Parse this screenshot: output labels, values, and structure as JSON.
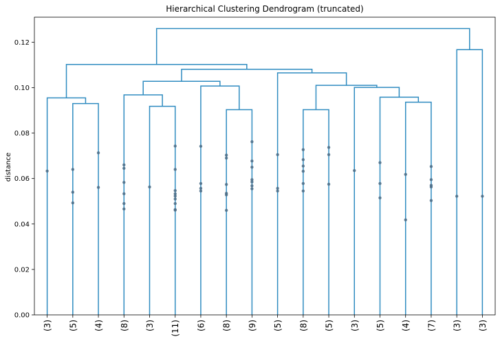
{
  "chart_data": {
    "type": "dendrogram",
    "title": "Hierarchical Clustering Dendrogram (truncated)",
    "xlabel": "",
    "ylabel": "distance",
    "ylim": [
      0,
      0.131
    ],
    "yticks": [
      "0.00",
      "0.02",
      "0.04",
      "0.06",
      "0.08",
      "0.10",
      "0.12"
    ],
    "ytick_values": [
      0,
      0.02,
      0.04,
      0.06,
      0.08,
      0.1,
      0.12
    ],
    "line_color": "#2e8bc0",
    "dot_color": "#4a6b85",
    "leaves": [
      "(3)",
      "(5)",
      "(4)",
      "(8)",
      "(3)",
      "(11)",
      "(6)",
      "(8)",
      "(9)",
      "(5)",
      "(8)",
      "(5)",
      "(3)",
      "(5)",
      "(4)",
      "(7)",
      "(3)",
      "(3)"
    ],
    "merges": [
      {
        "left": [
          1
        ],
        "right": [
          2
        ],
        "height": 0.093
      },
      {
        "left": [
          0
        ],
        "right": [
          1,
          2
        ],
        "height": 0.0955
      },
      {
        "left": [
          7
        ],
        "right": [
          8
        ],
        "height": 0.0903
      },
      {
        "left": [
          6
        ],
        "right": [
          7,
          8
        ],
        "height": 0.1007
      },
      {
        "left": [
          4
        ],
        "right": [
          5
        ],
        "height": 0.0918
      },
      {
        "left": [
          3
        ],
        "right": [
          4,
          5
        ],
        "height": 0.0968
      },
      {
        "left": [
          3,
          4,
          5
        ],
        "right": [
          6,
          7,
          8
        ],
        "height": 0.1028
      },
      {
        "left": [
          10
        ],
        "right": [
          11
        ],
        "height": 0.0903
      },
      {
        "left": [
          14
        ],
        "right": [
          15
        ],
        "height": 0.0936
      },
      {
        "left": [
          13
        ],
        "right": [
          14,
          15
        ],
        "height": 0.0958
      },
      {
        "left": [
          12
        ],
        "right": [
          13,
          14,
          15
        ],
        "height": 0.1001
      },
      {
        "left": [
          10,
          11
        ],
        "right": [
          12,
          13,
          14,
          15
        ],
        "height": 0.101
      },
      {
        "left": [
          9
        ],
        "right": [
          10,
          11,
          12,
          13,
          14,
          15
        ],
        "height": 0.1065
      },
      {
        "left": [
          3,
          4,
          5,
          6,
          7,
          8
        ],
        "right": [
          9,
          10,
          11,
          12,
          13,
          14,
          15
        ],
        "height": 0.1081
      },
      {
        "left": [
          0,
          1,
          2
        ],
        "right": [
          3,
          4,
          5,
          6,
          7,
          8,
          9,
          10,
          11,
          12,
          13,
          14,
          15
        ],
        "height": 0.1102
      },
      {
        "left": [
          16
        ],
        "right": [
          17
        ],
        "height": 0.1167
      },
      {
        "left": [
          0,
          1,
          2,
          3,
          4,
          5,
          6,
          7,
          8,
          9,
          10,
          11,
          12,
          13,
          14,
          15
        ],
        "right": [
          16,
          17
        ],
        "height": 0.126
      }
    ],
    "leaf_points": [
      [
        0.0633
      ],
      [
        0.064,
        0.054,
        0.0493
      ],
      [
        0.0713,
        0.0561
      ],
      [
        0.066,
        0.0645,
        0.0583,
        0.0533,
        0.049,
        0.0466
      ],
      [
        0.0563
      ],
      [
        0.0743,
        0.064,
        0.0547,
        0.0533,
        0.0523,
        0.051,
        0.049,
        0.0463,
        0.0461
      ],
      [
        0.0742,
        0.0578,
        0.0557,
        0.0545
      ],
      [
        0.0703,
        0.069,
        0.0574,
        0.0535,
        0.0528,
        0.046
      ],
      [
        0.0762,
        0.0677,
        0.065,
        0.0595,
        0.0585,
        0.0568,
        0.0555
      ],
      [
        0.0705,
        0.0557,
        0.0545
      ],
      [
        0.0727,
        0.0683,
        0.0655,
        0.0632,
        0.0578,
        0.0545
      ],
      [
        0.0737,
        0.0705,
        0.0575
      ],
      [
        0.0635
      ],
      [
        0.067,
        0.0578,
        0.0515
      ],
      [
        0.0618,
        0.0418
      ],
      [
        0.0653,
        0.0595,
        0.057,
        0.0563,
        0.0503
      ],
      [
        0.0522
      ],
      [
        0.0522
      ]
    ]
  }
}
